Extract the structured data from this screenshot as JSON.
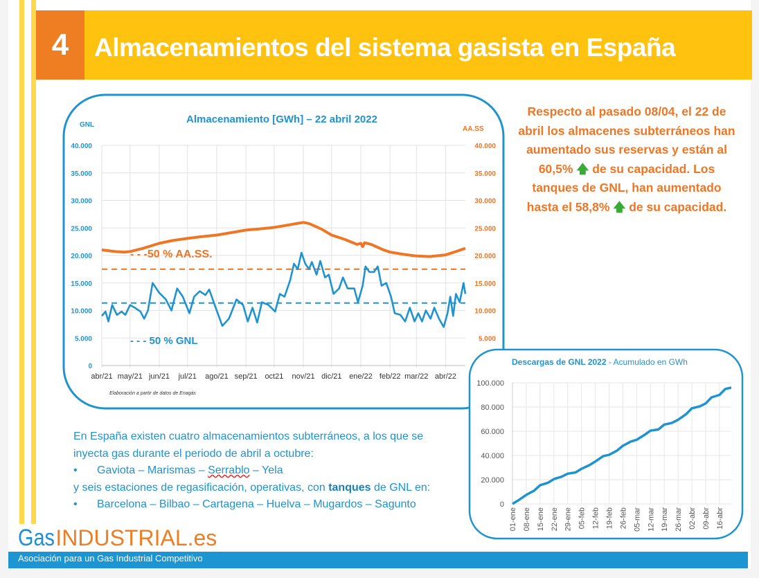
{
  "header": {
    "number": "4",
    "title": "Almacenamientos del sistema gasista en España"
  },
  "colors": {
    "header_bg": "#ffc20e",
    "number_bg": "#ef7d22",
    "blue": "#1f93cf",
    "orange": "#ee7624",
    "arrow_green": "#3aa935"
  },
  "note": {
    "l1": "Respecto al pasado 08/04, el 22 de abril los almacenes subterráneos han aumentado sus reservas y están al 60,5%",
    "arrow1": "up-arrow-icon",
    "l2": " de su capacidad. Los tanques de GNL, han aumentado hasta el 58,8%",
    "arrow2": "up-arrow-icon",
    "l3": " de su capacidad."
  },
  "info": {
    "p1": "En España existen cuatro almacenamientos subterráneos, a los que se inyecta gas durante el periodo de abril a octubre:",
    "bullet": "•",
    "list1_a": "Gaviota – Marismas – ",
    "list1_b": "Serrablo",
    "list1_c": " – Yela",
    "p2_a": "y seis estaciones de regasificación, operativas, con ",
    "p2_b": "tanques",
    "p2_c": " de GNL en:",
    "list2": "Barcelona – Bilbao – Cartagena – Huelva – Mugardos – Sagunto"
  },
  "footer": {
    "logo_gas": "Gas",
    "logo_industrial": "INDUSTRIAL.es",
    "tagline": "Asociación para un Gas Industrial Competitivo"
  },
  "chart_data": [
    {
      "type": "line",
      "title": "Almacenamiento [GWh] – 22 abril 2022",
      "ylabel_left": "GNL",
      "ylabel_right": "AA.SS",
      "ylim": [
        0,
        40000
      ],
      "yticks": [
        "0",
        "5.000",
        "10.000",
        "15.000",
        "20.000",
        "25.000",
        "30.000",
        "35.000",
        "40.000"
      ],
      "yticks_right": [
        "5.000",
        "10.000",
        "15.000",
        "20.000",
        "25.000",
        "30.000",
        "35.000",
        "40.000"
      ],
      "xlim": [
        "2021-04-01",
        "2022-04-22"
      ],
      "xticks": [
        {
          "date": "2021-04-01",
          "label": "abr/21"
        },
        {
          "date": "2021-05-01",
          "label": "may/21"
        },
        {
          "date": "2021-06-01",
          "label": "jun/21"
        },
        {
          "date": "2021-07-01",
          "label": "jul/21"
        },
        {
          "date": "2021-08-01",
          "label": "ago/21"
        },
        {
          "date": "2021-09-01",
          "label": "sep/21"
        },
        {
          "date": "2021-10-01",
          "label": "oct21"
        },
        {
          "date": "2021-11-01",
          "label": "nov/21"
        },
        {
          "date": "2021-12-01",
          "label": "dic/21"
        },
        {
          "date": "2022-01-01",
          "label": "ene/22"
        },
        {
          "date": "2022-02-01",
          "label": "feb/22"
        },
        {
          "date": "2022-03-01",
          "label": "mar/22"
        },
        {
          "date": "2022-04-01",
          "label": "abr/22"
        }
      ],
      "grid": true,
      "series": [
        {
          "axis": "right",
          "color": "#ee7624",
          "points": [
            [
              "2021-04-01",
              21000
            ],
            [
              "2021-04-15",
              20700
            ],
            [
              "2021-04-25",
              20600
            ],
            [
              "2021-05-01",
              20700
            ],
            [
              "2021-05-15",
              21300
            ],
            [
              "2021-06-01",
              22200
            ],
            [
              "2021-06-15",
              22700
            ],
            [
              "2021-07-01",
              23100
            ],
            [
              "2021-07-15",
              23400
            ],
            [
              "2021-08-01",
              23700
            ],
            [
              "2021-08-15",
              24100
            ],
            [
              "2021-09-01",
              24600
            ],
            [
              "2021-09-15",
              24800
            ],
            [
              "2021-10-01",
              25100
            ],
            [
              "2021-10-15",
              25500
            ],
            [
              "2021-10-25",
              25800
            ],
            [
              "2021-11-01",
              26000
            ],
            [
              "2021-11-07",
              25800
            ],
            [
              "2021-11-20",
              24800
            ],
            [
              "2021-12-01",
              23700
            ],
            [
              "2021-12-15",
              22900
            ],
            [
              "2021-12-28",
              22000
            ],
            [
              "2022-01-01",
              22200
            ],
            [
              "2022-01-03",
              21600
            ],
            [
              "2022-01-05",
              22300
            ],
            [
              "2022-01-12",
              22000
            ],
            [
              "2022-01-25",
              21000
            ],
            [
              "2022-02-01",
              20600
            ],
            [
              "2022-02-15",
              20200
            ],
            [
              "2022-03-01",
              19900
            ],
            [
              "2022-03-15",
              19800
            ],
            [
              "2022-04-01",
              20100
            ],
            [
              "2022-04-12",
              20700
            ],
            [
              "2022-04-22",
              21300
            ]
          ]
        },
        {
          "axis": "left",
          "color": "#1f93cf",
          "points": [
            [
              "2021-04-01",
              9000
            ],
            [
              "2021-04-05",
              9800
            ],
            [
              "2021-04-08",
              8000
            ],
            [
              "2021-04-12",
              11000
            ],
            [
              "2021-04-17",
              9200
            ],
            [
              "2021-04-22",
              9800
            ],
            [
              "2021-04-26",
              9200
            ],
            [
              "2021-05-01",
              11000
            ],
            [
              "2021-05-06",
              10500
            ],
            [
              "2021-05-12",
              9800
            ],
            [
              "2021-05-16",
              8500
            ],
            [
              "2021-05-20",
              10000
            ],
            [
              "2021-05-25",
              15000
            ],
            [
              "2021-06-01",
              13200
            ],
            [
              "2021-06-08",
              12000
            ],
            [
              "2021-06-14",
              10000
            ],
            [
              "2021-06-20",
              14000
            ],
            [
              "2021-06-26",
              12500
            ],
            [
              "2021-07-03",
              9500
            ],
            [
              "2021-07-08",
              12500
            ],
            [
              "2021-07-14",
              13500
            ],
            [
              "2021-07-20",
              12800
            ],
            [
              "2021-07-24",
              13800
            ],
            [
              "2021-08-01",
              10000
            ],
            [
              "2021-08-07",
              7200
            ],
            [
              "2021-08-14",
              8500
            ],
            [
              "2021-08-22",
              12000
            ],
            [
              "2021-08-29",
              11000
            ],
            [
              "2021-09-03",
              8000
            ],
            [
              "2021-09-08",
              10500
            ],
            [
              "2021-09-13",
              7800
            ],
            [
              "2021-09-18",
              11500
            ],
            [
              "2021-09-25",
              11000
            ],
            [
              "2021-10-02",
              9800
            ],
            [
              "2021-10-07",
              13000
            ],
            [
              "2021-10-12",
              12500
            ],
            [
              "2021-10-18",
              15500
            ],
            [
              "2021-10-22",
              18500
            ],
            [
              "2021-10-26",
              17500
            ],
            [
              "2021-10-30",
              20500
            ],
            [
              "2021-11-03",
              18500
            ],
            [
              "2021-11-07",
              17500
            ],
            [
              "2021-11-10",
              18800
            ],
            [
              "2021-11-15",
              16500
            ],
            [
              "2021-11-19",
              19000
            ],
            [
              "2021-11-24",
              16000
            ],
            [
              "2021-11-28",
              16500
            ],
            [
              "2021-12-03",
              13000
            ],
            [
              "2021-12-09",
              14000
            ],
            [
              "2021-12-13",
              16000
            ],
            [
              "2021-12-18",
              14000
            ],
            [
              "2021-12-25",
              14000
            ],
            [
              "2021-12-29",
              11500
            ],
            [
              "2022-01-03",
              14500
            ],
            [
              "2022-01-06",
              18000
            ],
            [
              "2022-01-10",
              17000
            ],
            [
              "2022-01-15",
              17000
            ],
            [
              "2022-01-19",
              18000
            ],
            [
              "2022-01-23",
              14500
            ],
            [
              "2022-01-28",
              15000
            ],
            [
              "2022-02-02",
              12500
            ],
            [
              "2022-02-06",
              9500
            ],
            [
              "2022-02-12",
              9200
            ],
            [
              "2022-02-17",
              8000
            ],
            [
              "2022-02-22",
              10500
            ],
            [
              "2022-02-27",
              8000
            ],
            [
              "2022-03-03",
              9500
            ],
            [
              "2022-03-07",
              8000
            ],
            [
              "2022-03-11",
              10000
            ],
            [
              "2022-03-16",
              8500
            ],
            [
              "2022-03-20",
              10500
            ],
            [
              "2022-03-25",
              8500
            ],
            [
              "2022-03-30",
              7000
            ],
            [
              "2022-04-03",
              9500
            ],
            [
              "2022-04-06",
              12500
            ],
            [
              "2022-04-09",
              9000
            ],
            [
              "2022-04-12",
              13000
            ],
            [
              "2022-04-16",
              11500
            ],
            [
              "2022-04-20",
              15000
            ],
            [
              "2022-04-22",
              13000
            ]
          ]
        }
      ],
      "reference_lines": [
        {
          "axis": "right",
          "value": 17500,
          "label": "- - -50 % AA.SS.",
          "color": "#ee7624"
        },
        {
          "axis": "left",
          "value": 11350,
          "label": "- - - 50 % GNL",
          "color": "#1f93cf"
        }
      ],
      "source": "Elaboración a partir de datos de Enagás"
    },
    {
      "type": "line",
      "title": "Descargas de GNL 2022",
      "subtitle": " - Acumulado en GWh",
      "ylim": [
        0,
        100000
      ],
      "yticks": [
        "0",
        "20.000",
        "40.000",
        "60.000",
        "80.000",
        "100.000"
      ],
      "xlim": [
        "2022-01-01",
        "2022-04-22"
      ],
      "xticks": [
        {
          "date": "2022-01-01",
          "label": "01-ene"
        },
        {
          "date": "2022-01-08",
          "label": "08-ene"
        },
        {
          "date": "2022-01-15",
          "label": "15-ene"
        },
        {
          "date": "2022-01-22",
          "label": "22-ene"
        },
        {
          "date": "2022-01-29",
          "label": "29-ene"
        },
        {
          "date": "2022-02-05",
          "label": "05-feb"
        },
        {
          "date": "2022-02-12",
          "label": "12-feb"
        },
        {
          "date": "2022-02-19",
          "label": "19-feb"
        },
        {
          "date": "2022-02-26",
          "label": "26-feb"
        },
        {
          "date": "2022-03-05",
          "label": "05-mar"
        },
        {
          "date": "2022-03-12",
          "label": "12-mar"
        },
        {
          "date": "2022-03-19",
          "label": "19-mar"
        },
        {
          "date": "2022-03-26",
          "label": "26-mar"
        },
        {
          "date": "2022-04-02",
          "label": "02-abr"
        },
        {
          "date": "2022-04-09",
          "label": "09-abr"
        },
        {
          "date": "2022-04-16",
          "label": "16-abr"
        }
      ],
      "grid": true,
      "series": [
        {
          "color": "#1f93cf",
          "points": [
            [
              "2022-01-01",
              0
            ],
            [
              "2022-01-04",
              3000
            ],
            [
              "2022-01-08",
              7500
            ],
            [
              "2022-01-12",
              11000
            ],
            [
              "2022-01-15",
              15500
            ],
            [
              "2022-01-19",
              17500
            ],
            [
              "2022-01-22",
              20500
            ],
            [
              "2022-01-26",
              22500
            ],
            [
              "2022-01-29",
              25000
            ],
            [
              "2022-02-02",
              26000
            ],
            [
              "2022-02-05",
              29000
            ],
            [
              "2022-02-09",
              32000
            ],
            [
              "2022-02-12",
              35000
            ],
            [
              "2022-02-16",
              39500
            ],
            [
              "2022-02-19",
              40500
            ],
            [
              "2022-02-23",
              44000
            ],
            [
              "2022-02-26",
              48000
            ],
            [
              "2022-03-02",
              51500
            ],
            [
              "2022-03-05",
              53000
            ],
            [
              "2022-03-09",
              57000
            ],
            [
              "2022-03-12",
              60500
            ],
            [
              "2022-03-16",
              61500
            ],
            [
              "2022-03-19",
              65500
            ],
            [
              "2022-03-23",
              67000
            ],
            [
              "2022-03-26",
              69500
            ],
            [
              "2022-03-30",
              74000
            ],
            [
              "2022-04-02",
              79000
            ],
            [
              "2022-04-06",
              80500
            ],
            [
              "2022-04-09",
              83000
            ],
            [
              "2022-04-12",
              88000
            ],
            [
              "2022-04-16",
              90000
            ],
            [
              "2022-04-19",
              95000
            ],
            [
              "2022-04-22",
              96000
            ]
          ]
        }
      ]
    }
  ]
}
